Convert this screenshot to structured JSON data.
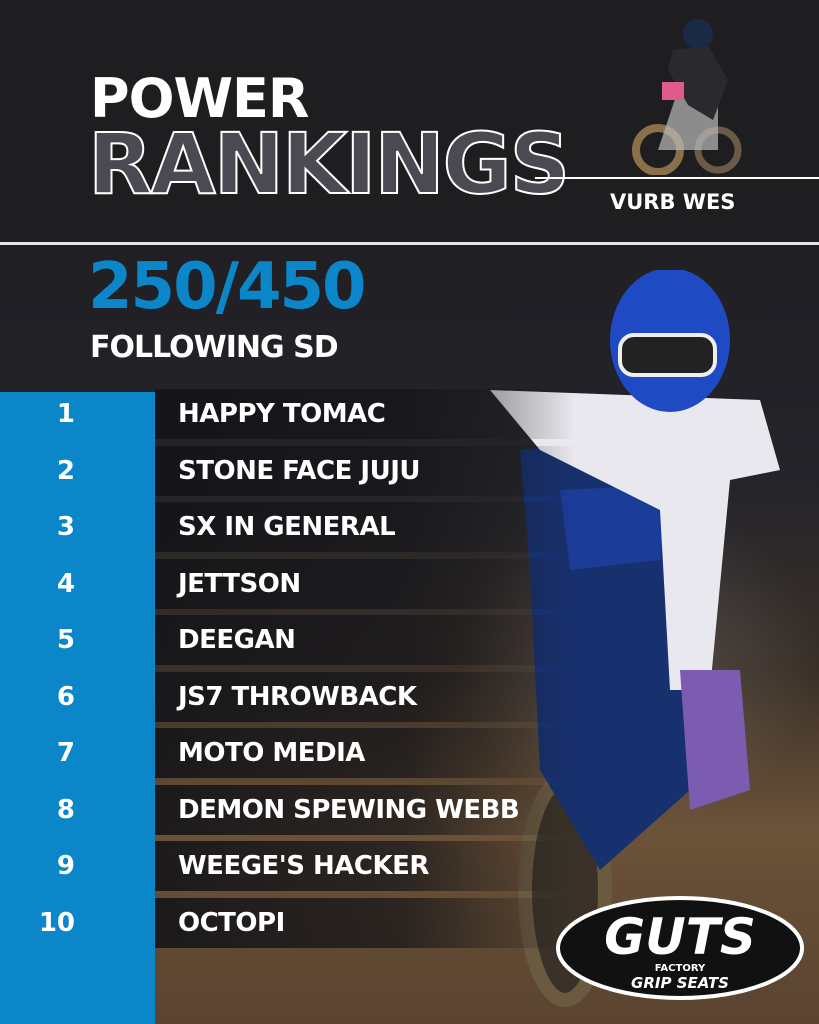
{
  "header": {
    "title_line1": "POWER",
    "title_line2": "RANKINGS",
    "author": "VURB WES"
  },
  "section": {
    "class": "250/450",
    "subtitle": "FOLLOWING SD"
  },
  "rankings": [
    {
      "rank": "1",
      "name": "HAPPY TOMAC"
    },
    {
      "rank": "2",
      "name": "STONE FACE JUJU"
    },
    {
      "rank": "3",
      "name": "SX IN GENERAL"
    },
    {
      "rank": "4",
      "name": "JETTSON"
    },
    {
      "rank": "5",
      "name": "DEEGAN"
    },
    {
      "rank": "6",
      "name": "JS7 THROWBACK"
    },
    {
      "rank": "7",
      "name": "MOTO MEDIA"
    },
    {
      "rank": "8",
      "name": "DEMON SPEWING WEBB"
    },
    {
      "rank": "9",
      "name": "WEEGE'S HACKER"
    },
    {
      "rank": "10",
      "name": "OCTOPI"
    }
  ],
  "sponsor": {
    "logo_main": "GUTS",
    "logo_line1": "FACTORY",
    "logo_line2": "GRIP SEATS"
  },
  "colors": {
    "accent": "#0a86c9",
    "background": "#1e1e21",
    "text": "#ffffff"
  }
}
